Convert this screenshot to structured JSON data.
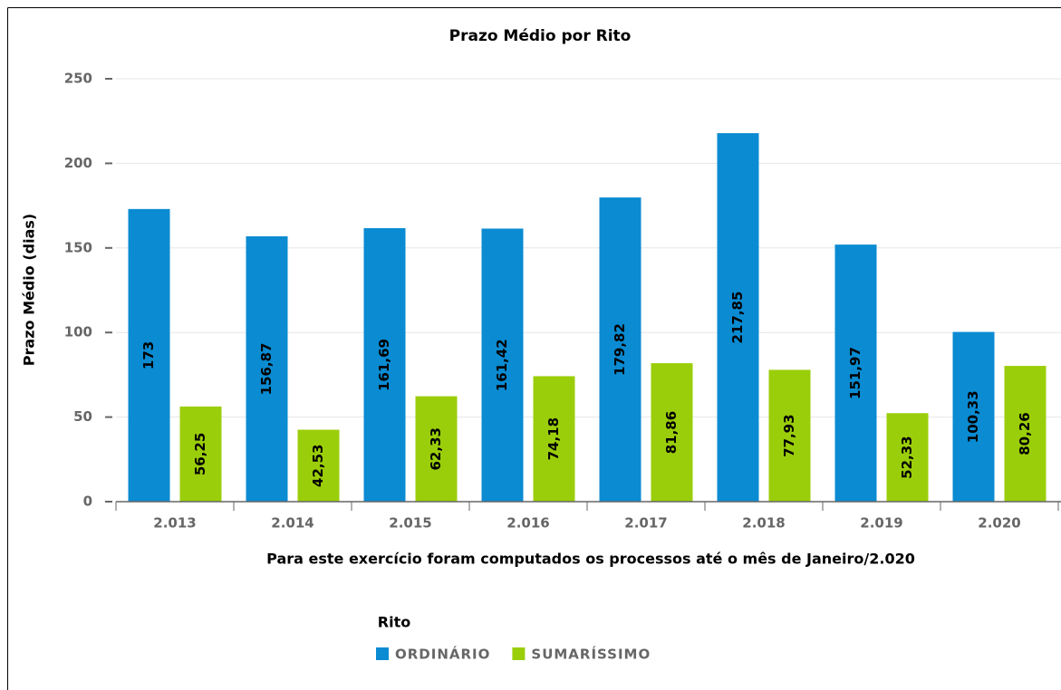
{
  "chart_data": {
    "type": "bar",
    "title": "Prazo Médio por Rito",
    "y_label": "Prazo Médio (dias)",
    "x_label": "Para este exercício foram computados os processos até o mês de Janeiro/2.020",
    "legend_title": "Rito",
    "categories": [
      "2.013",
      "2.014",
      "2.015",
      "2.016",
      "2.017",
      "2.018",
      "2.019",
      "2.020"
    ],
    "series": [
      {
        "name": "ORDINÁRIO",
        "color": "#0a8bd2",
        "values": [
          173,
          156.87,
          161.69,
          161.42,
          179.82,
          217.85,
          151.97,
          100.33
        ],
        "value_labels": [
          "173",
          "156,87",
          "161,69",
          "161,42",
          "179,82",
          "217,85",
          "151,97",
          "100,33"
        ]
      },
      {
        "name": "SUMARÍSSIMO",
        "color": "#9bce0a",
        "values": [
          56.25,
          42.53,
          62.33,
          74.18,
          81.86,
          77.93,
          52.33,
          80.26
        ],
        "value_labels": [
          "56,25",
          "42,53",
          "62,33",
          "74,18",
          "81,86",
          "77,93",
          "52,33",
          "80,26"
        ]
      }
    ],
    "ylim": [
      0,
      250
    ],
    "yticks": [
      0,
      50,
      100,
      150,
      200,
      250
    ],
    "grid": true
  }
}
